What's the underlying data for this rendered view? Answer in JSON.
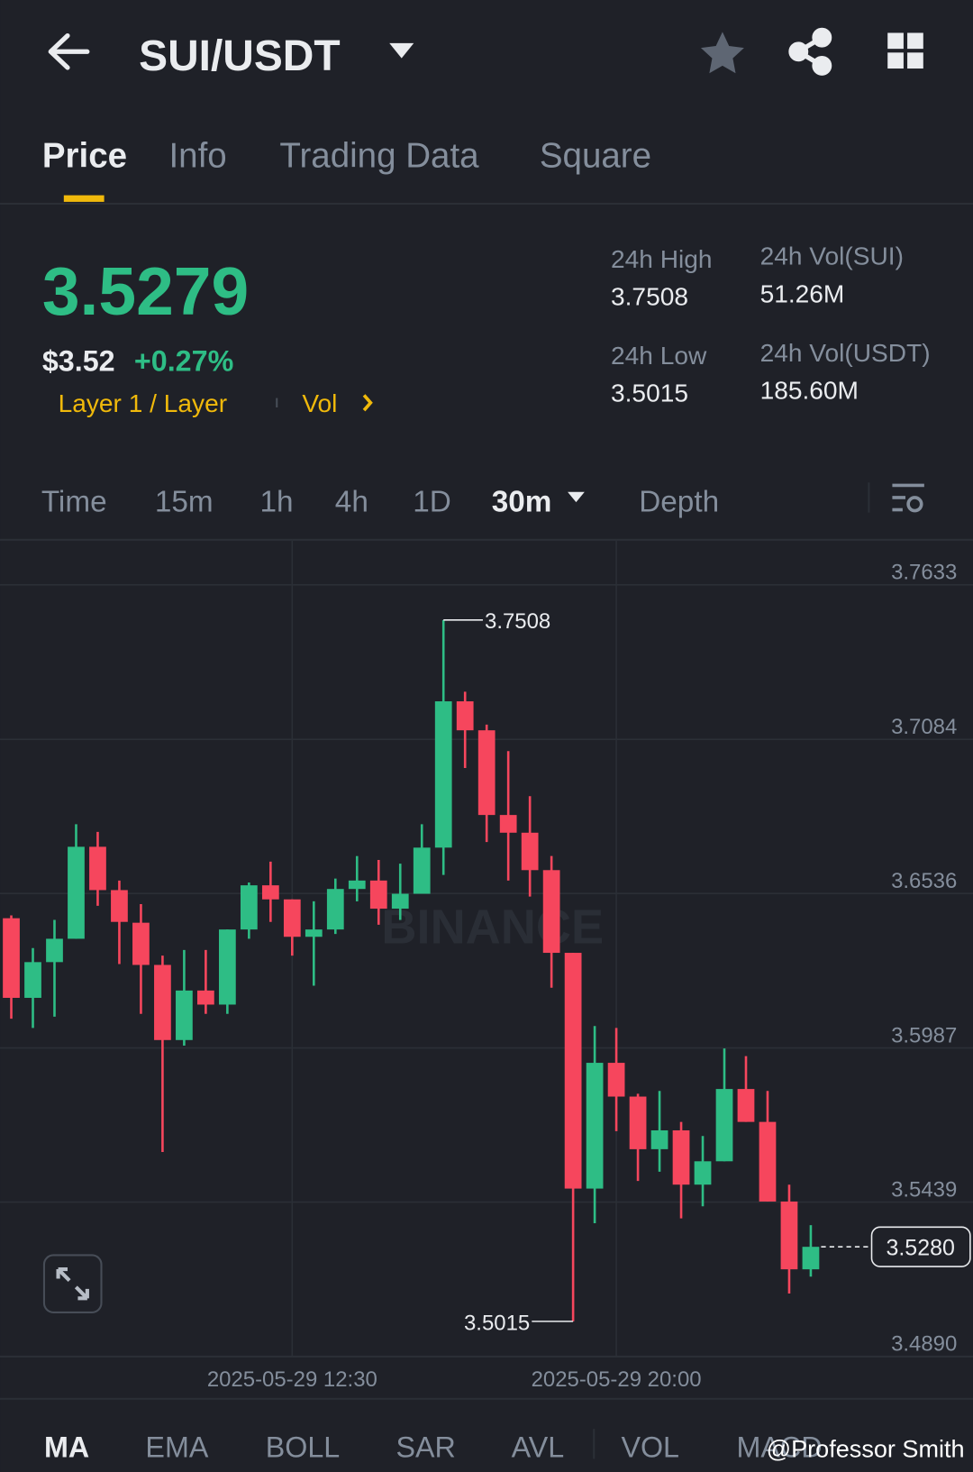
{
  "header": {
    "pair": "SUI/USDT"
  },
  "tabs": [
    "Price",
    "Info",
    "Trading Data",
    "Square"
  ],
  "ticker": {
    "price": "3.5279",
    "usd_price": "$3.52",
    "change": "+0.27%",
    "tag": "Layer 1 / Layer",
    "vol_link": "Vol",
    "stats": [
      {
        "label": "24h High",
        "value": "3.7508"
      },
      {
        "label": "24h Vol(SUI)",
        "value": "51.26M"
      },
      {
        "label": "24h Low",
        "value": "3.5015"
      },
      {
        "label": "24h Vol(USDT)",
        "value": "185.60M"
      }
    ]
  },
  "intervals": [
    "Time",
    "15m",
    "1h",
    "4h",
    "1D",
    "30m",
    "Depth"
  ],
  "watermark_logo": "BINANCE",
  "chart_data": {
    "type": "candlestick",
    "categories": [
      null,
      null,
      null,
      null,
      null,
      null,
      null,
      null,
      null,
      null,
      null,
      null,
      null,
      "2025-05-29 12:30",
      null,
      null,
      null,
      null,
      null,
      null,
      null,
      null,
      null,
      null,
      null,
      null,
      null,
      null,
      "2025-05-29 20:00",
      null,
      null,
      null,
      null,
      null,
      null,
      null,
      null,
      null
    ],
    "open": [
      3.6448,
      3.6165,
      3.6292,
      3.6375,
      3.6702,
      3.6548,
      3.6432,
      3.6282,
      3.6015,
      3.6191,
      3.6141,
      3.6408,
      3.6565,
      3.6515,
      3.6382,
      3.6408,
      3.6552,
      3.6582,
      3.6482,
      3.6535,
      3.6699,
      3.7219,
      3.7116,
      3.6815,
      3.6752,
      3.6619,
      3.6325,
      3.5487,
      3.5934,
      3.5814,
      3.5627,
      3.5694,
      3.5501,
      3.5584,
      3.5841,
      3.5724,
      3.5441,
      3.52
    ],
    "high": [
      3.6458,
      3.6342,
      3.6442,
      3.6782,
      3.6755,
      3.6582,
      3.6498,
      3.6315,
      3.6335,
      3.6335,
      3.6408,
      3.6575,
      3.6649,
      3.6515,
      3.6508,
      3.6589,
      3.6669,
      3.6655,
      3.6642,
      3.6782,
      3.7508,
      3.7253,
      3.7136,
      3.7042,
      3.6882,
      3.6669,
      3.6325,
      3.6065,
      3.6058,
      3.5824,
      3.5834,
      3.5724,
      3.5674,
      3.5985,
      3.5958,
      3.5834,
      3.5501,
      3.5357
    ],
    "low": [
      3.6091,
      3.6058,
      3.6098,
      3.6375,
      3.6492,
      3.6285,
      3.6108,
      3.5617,
      3.5995,
      3.6108,
      3.6108,
      3.6375,
      3.6435,
      3.6315,
      3.6208,
      3.6392,
      3.6508,
      3.6425,
      3.6442,
      3.6535,
      3.6602,
      3.6982,
      3.6719,
      3.6582,
      3.6525,
      3.6201,
      3.5015,
      3.5364,
      3.5691,
      3.5514,
      3.5547,
      3.5381,
      3.5424,
      3.5584,
      3.5724,
      3.5441,
      3.5114,
      3.5174
    ],
    "close": [
      3.6165,
      3.6292,
      3.6375,
      3.6702,
      3.6548,
      3.6435,
      3.6282,
      3.6015,
      3.6191,
      3.6141,
      3.6408,
      3.6565,
      3.6515,
      3.6382,
      3.6408,
      3.6552,
      3.6582,
      3.6482,
      3.6535,
      3.6699,
      3.7219,
      3.7116,
      3.6815,
      3.6752,
      3.6619,
      3.6325,
      3.5487,
      3.5934,
      3.5814,
      3.5627,
      3.5694,
      3.5501,
      3.5584,
      3.5841,
      3.5724,
      3.5441,
      3.52,
      3.528
    ],
    "last_price_label": "3.5280",
    "up_color": "#2ebd85",
    "down_color": "#f6465d",
    "ylim": [
      3.489,
      3.7633
    ],
    "yticks": [
      3.7633,
      3.7084,
      3.6536,
      3.5987,
      3.5439,
      {
        "value": 3.489,
        "label": "3.4890"
      }
    ],
    "grid": true
  },
  "indicators": [
    "MA",
    "EMA",
    "BOLL",
    "SAR",
    "AVL",
    "VOL",
    "MACD"
  ],
  "credit": "@Professor Smith"
}
